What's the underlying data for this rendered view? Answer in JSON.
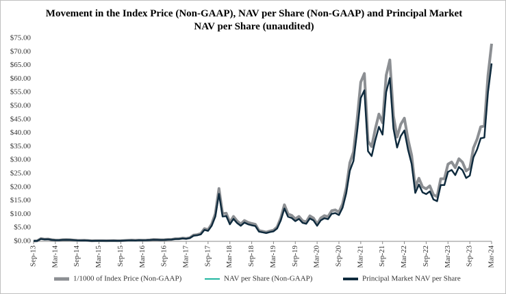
{
  "chart_data": {
    "type": "line",
    "title": "Movement in the Index Price (Non-GAAP), NAV per Share (Non-GAAP) and Principal Market NAV per Share (unaudited)",
    "categories": [
      "Sep-13",
      null,
      null,
      null,
      null,
      null,
      "Mar-14",
      null,
      null,
      null,
      null,
      null,
      "Sep-14",
      null,
      null,
      null,
      null,
      null,
      "Mar-15",
      null,
      null,
      null,
      null,
      null,
      "Sep-15",
      null,
      null,
      null,
      null,
      null,
      "Mar-16",
      null,
      null,
      null,
      null,
      null,
      "Sep-16",
      null,
      null,
      null,
      null,
      null,
      "Mar-17",
      null,
      null,
      null,
      null,
      null,
      "Sep-17",
      null,
      null,
      null,
      null,
      null,
      "Mar-18",
      null,
      null,
      null,
      null,
      null,
      "Sep-18",
      null,
      null,
      null,
      null,
      null,
      "Mar-19",
      null,
      null,
      null,
      null,
      null,
      "Sep-19",
      null,
      null,
      null,
      null,
      null,
      "Mar-20",
      null,
      null,
      null,
      null,
      null,
      "Sep-20",
      null,
      null,
      null,
      null,
      null,
      "Mar-21",
      null,
      null,
      null,
      null,
      null,
      "Sep-21",
      null,
      null,
      null,
      null,
      null,
      "Mar-22",
      null,
      null,
      null,
      null,
      null,
      "Sep-22",
      null,
      null,
      null,
      null,
      null,
      "Mar-23",
      null,
      null,
      null,
      null,
      null,
      "Sep-23",
      null,
      null,
      null,
      null,
      null,
      "Mar-24"
    ],
    "series": [
      {
        "name": "1/1000 of Index Price (Non-GAAP)",
        "color": "#8c8f93",
        "values": [
          0.13,
          0.2,
          1.0,
          0.8,
          0.85,
          0.6,
          0.47,
          0.45,
          0.6,
          0.64,
          0.59,
          0.48,
          0.39,
          0.34,
          0.38,
          0.32,
          0.22,
          0.25,
          0.25,
          0.24,
          0.23,
          0.26,
          0.28,
          0.23,
          0.24,
          0.31,
          0.38,
          0.43,
          0.37,
          0.44,
          0.42,
          0.45,
          0.53,
          0.67,
          0.62,
          0.57,
          0.61,
          0.7,
          0.74,
          0.96,
          0.97,
          1.19,
          1.07,
          1.35,
          2.3,
          2.48,
          2.87,
          4.7,
          4.3,
          6.4,
          10.2,
          19.5,
          10.2,
          10.4,
          7.0,
          9.2,
          7.5,
          6.4,
          7.7,
          7.0,
          6.6,
          6.3,
          4.0,
          3.7,
          3.4,
          3.8,
          4.1,
          5.3,
          8.6,
          13.5,
          10.1,
          9.6,
          8.3,
          9.2,
          7.6,
          7.2,
          9.4,
          8.6,
          6.4,
          8.6,
          9.5,
          9.1,
          11.3,
          11.6,
          10.8,
          13.8,
          19.7,
          29.0,
          33,
          45,
          58.8,
          62,
          37,
          35,
          41.5,
          47,
          43.8,
          61.3,
          67,
          46.3,
          38.5,
          43.2,
          45.5,
          37.7,
          31.8,
          19.9,
          23.3,
          20.1,
          19.4,
          20.5,
          17.2,
          16.5,
          23.1,
          23.1,
          28.5,
          29.3,
          27.2,
          30.5,
          29.2,
          26,
          27,
          34.5,
          37.7,
          42.3,
          42.6,
          61.2,
          73
        ]
      },
      {
        "name": "NAV per Share (Non-GAAP)",
        "color": "#1fb5a0",
        "values": [
          0.12,
          0.18,
          0.9,
          0.72,
          0.77,
          0.54,
          0.42,
          0.41,
          0.54,
          0.58,
          0.53,
          0.43,
          0.35,
          0.31,
          0.34,
          0.29,
          0.2,
          0.23,
          0.23,
          0.22,
          0.21,
          0.23,
          0.25,
          0.21,
          0.22,
          0.28,
          0.34,
          0.39,
          0.33,
          0.4,
          0.38,
          0.41,
          0.48,
          0.6,
          0.56,
          0.51,
          0.55,
          0.63,
          0.67,
          0.86,
          0.87,
          1.07,
          0.96,
          1.22,
          2.07,
          2.23,
          2.58,
          4.23,
          3.87,
          5.76,
          9.18,
          17.55,
          9.18,
          9.36,
          6.3,
          8.28,
          6.75,
          5.76,
          6.93,
          6.3,
          5.94,
          5.67,
          3.6,
          3.33,
          3.06,
          3.42,
          3.69,
          4.77,
          7.74,
          12.15,
          9.09,
          8.64,
          7.47,
          8.28,
          6.84,
          6.48,
          8.46,
          7.74,
          5.76,
          7.74,
          8.55,
          8.19,
          10.17,
          10.44,
          9.72,
          12.42,
          17.73,
          26.1,
          29.7,
          40.5,
          52.92,
          55.8,
          33.3,
          31.5,
          37.35,
          42.3,
          39.42,
          55.17,
          60.3,
          41.67,
          34.65,
          38.88,
          40.95,
          33.93,
          28.62,
          17.91,
          20.97,
          18.09,
          17.46,
          18.45,
          15.48,
          14.85,
          20.79,
          20.79,
          25.65,
          26.37,
          24.48,
          27.45,
          26.28,
          23.4,
          24.3,
          31.05,
          33.93,
          38.07,
          38.34,
          55.08,
          65.7
        ]
      },
      {
        "name": "Principal Market NAV per Share",
        "color": "#0f2a3d",
        "values": [
          0.12,
          0.18,
          0.9,
          0.72,
          0.77,
          0.54,
          0.42,
          0.41,
          0.54,
          0.58,
          0.53,
          0.43,
          0.35,
          0.31,
          0.34,
          0.29,
          0.2,
          0.23,
          0.23,
          0.22,
          0.21,
          0.23,
          0.25,
          0.21,
          0.22,
          0.28,
          0.34,
          0.39,
          0.33,
          0.4,
          0.38,
          0.41,
          0.48,
          0.6,
          0.56,
          0.51,
          0.55,
          0.63,
          0.67,
          0.86,
          0.87,
          1.07,
          0.96,
          1.22,
          2.07,
          2.23,
          2.58,
          4.23,
          3.87,
          5.76,
          9.18,
          17.55,
          9.18,
          9.36,
          6.3,
          8.28,
          6.75,
          5.76,
          6.93,
          6.3,
          5.94,
          5.67,
          3.6,
          3.33,
          3.06,
          3.42,
          3.69,
          4.77,
          7.74,
          12.15,
          9.09,
          8.64,
          7.47,
          8.28,
          6.84,
          6.48,
          8.46,
          7.74,
          5.76,
          7.74,
          8.55,
          8.19,
          10.17,
          10.44,
          9.72,
          12.42,
          17.73,
          26.1,
          29.7,
          40.5,
          52.92,
          55.8,
          33.3,
          31.5,
          37.35,
          42.3,
          39.42,
          55.17,
          60.3,
          41.67,
          34.65,
          38.88,
          40.95,
          33.93,
          28.62,
          17.91,
          20.97,
          18.09,
          17.46,
          18.45,
          15.48,
          14.85,
          20.79,
          20.79,
          25.65,
          26.37,
          24.48,
          27.45,
          26.28,
          23.4,
          24.3,
          31.05,
          33.93,
          38.07,
          38.34,
          55.08,
          65.7
        ]
      }
    ],
    "ylim": [
      0,
      75
    ],
    "yticks": [
      {
        "value": 0,
        "label": "$0.00"
      },
      {
        "value": 5,
        "label": "$5.00"
      },
      {
        "value": 10,
        "label": "$10.00"
      },
      {
        "value": 15,
        "label": "$15.00"
      },
      {
        "value": 20,
        "label": "$20.00"
      },
      {
        "value": 25,
        "label": "$25.00"
      },
      {
        "value": 30,
        "label": "$30.00"
      },
      {
        "value": 35,
        "label": "$35.00"
      },
      {
        "value": 40,
        "label": "$40.00"
      },
      {
        "value": 45,
        "label": "$45.00"
      },
      {
        "value": 50,
        "label": "$50.00"
      },
      {
        "value": 55,
        "label": "$55.00"
      },
      {
        "value": 60,
        "label": "$60.00"
      },
      {
        "value": 65,
        "label": "$65.00"
      },
      {
        "value": 70,
        "label": "$70.00"
      },
      {
        "value": 75,
        "label": "$75.00"
      }
    ],
    "grid": false,
    "legend": "bottom"
  }
}
